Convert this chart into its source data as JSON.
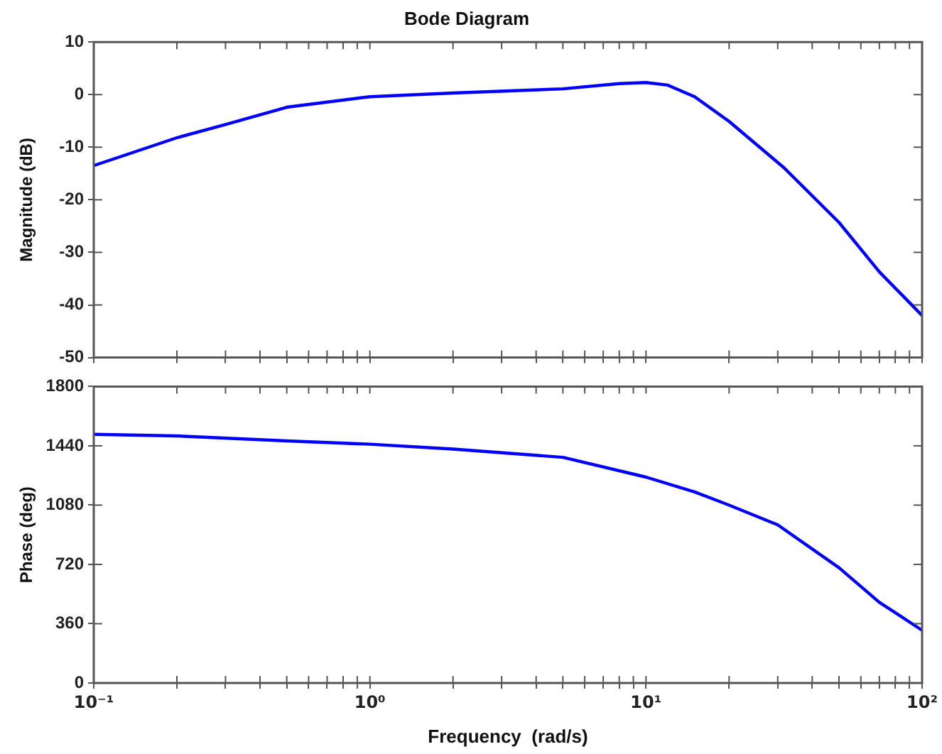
{
  "chart_data": [
    {
      "type": "line",
      "title": "Bode Diagram",
      "ylabel": "Magnitude (dB)",
      "log": "x",
      "grid": false,
      "legend": false,
      "marker": "none",
      "line_style": "solid",
      "tick_labels": "y",
      "xlim": [
        0.1,
        100
      ],
      "ylim": [
        -50,
        10
      ],
      "xticks": [
        {
          "value": 0.1,
          "label": null
        },
        {
          "value": 0.2,
          "label": null
        },
        {
          "value": 0.3,
          "label": null
        },
        {
          "value": 0.4,
          "label": null
        },
        {
          "value": 0.5,
          "label": null
        },
        {
          "value": 0.6,
          "label": null
        },
        {
          "value": 0.7,
          "label": null
        },
        {
          "value": 0.8,
          "label": null
        },
        {
          "value": 0.9,
          "label": null
        },
        {
          "value": 1,
          "label": null
        },
        {
          "value": 2,
          "label": null
        },
        {
          "value": 3,
          "label": null
        },
        {
          "value": 4,
          "label": null
        },
        {
          "value": 5,
          "label": null
        },
        {
          "value": 6,
          "label": null
        },
        {
          "value": 7,
          "label": null
        },
        {
          "value": 8,
          "label": null
        },
        {
          "value": 9,
          "label": null
        },
        {
          "value": 10,
          "label": null
        },
        {
          "value": 20,
          "label": null
        },
        {
          "value": 30,
          "label": null
        },
        {
          "value": 40,
          "label": null
        },
        {
          "value": 50,
          "label": null
        },
        {
          "value": 60,
          "label": null
        },
        {
          "value": 70,
          "label": null
        },
        {
          "value": 80,
          "label": null
        },
        {
          "value": 90,
          "label": null
        },
        {
          "value": 100,
          "label": null
        }
      ],
      "yticks": [
        -50,
        -40,
        -30,
        -20,
        -10,
        0,
        10
      ],
      "x": [
        0.1,
        0.2,
        0.3,
        0.5,
        1,
        2,
        5,
        8,
        10,
        12,
        15,
        20,
        31.6,
        50,
        70,
        100
      ],
      "series": [
        {
          "color": "#0000ff",
          "values": [
            -13.5,
            -8.2,
            -5.7,
            -2.4,
            -0.4,
            0.3,
            1.1,
            2.1,
            2.3,
            1.8,
            -0.4,
            -5.1,
            -13.9,
            -24.3,
            -33.7,
            -42
          ]
        }
      ]
    },
    {
      "type": "line",
      "xlabel": "Frequency  (rad/s)",
      "ylabel": "Phase (deg)",
      "log": "x",
      "grid": false,
      "legend": false,
      "marker": "none",
      "line_style": "solid",
      "xlim": [
        0.1,
        100
      ],
      "ylim": [
        0,
        1800
      ],
      "xticks": [
        {
          "value": 0.1,
          "label": "10⁻¹"
        },
        {
          "value": 0.2,
          "label": null
        },
        {
          "value": 0.3,
          "label": null
        },
        {
          "value": 0.4,
          "label": null
        },
        {
          "value": 0.5,
          "label": null
        },
        {
          "value": 0.6,
          "label": null
        },
        {
          "value": 0.7,
          "label": null
        },
        {
          "value": 0.8,
          "label": null
        },
        {
          "value": 0.9,
          "label": null
        },
        {
          "value": 1,
          "label": "10⁰"
        },
        {
          "value": 2,
          "label": null
        },
        {
          "value": 3,
          "label": null
        },
        {
          "value": 4,
          "label": null
        },
        {
          "value": 5,
          "label": null
        },
        {
          "value": 6,
          "label": null
        },
        {
          "value": 7,
          "label": null
        },
        {
          "value": 8,
          "label": null
        },
        {
          "value": 9,
          "label": null
        },
        {
          "value": 10,
          "label": "10¹"
        },
        {
          "value": 20,
          "label": null
        },
        {
          "value": 30,
          "label": null
        },
        {
          "value": 40,
          "label": null
        },
        {
          "value": 50,
          "label": null
        },
        {
          "value": 60,
          "label": null
        },
        {
          "value": 70,
          "label": null
        },
        {
          "value": 80,
          "label": null
        },
        {
          "value": 90,
          "label": null
        },
        {
          "value": 100,
          "label": "10²"
        }
      ],
      "yticks": [
        0,
        360,
        720,
        1080,
        1440,
        1800
      ],
      "x": [
        0.1,
        0.2,
        0.5,
        1,
        2,
        5,
        10,
        15,
        20,
        30,
        50,
        70,
        100
      ],
      "series": [
        {
          "color": "#0000ff",
          "values": [
            1510,
            1500,
            1470,
            1450,
            1420,
            1370,
            1250,
            1160,
            1080,
            960,
            700,
            490,
            320
          ]
        }
      ]
    }
  ]
}
